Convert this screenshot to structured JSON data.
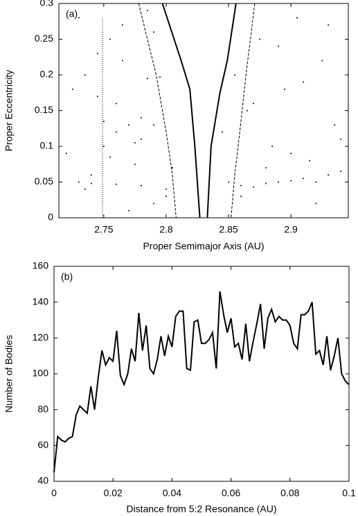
{
  "chart_data": [
    {
      "type": "scatter",
      "annotation": "(a)",
      "x_label": "Proper Semimajor Axis (AU)",
      "y_label": "Proper Eccentricity",
      "xlim": [
        2.714,
        2.946
      ],
      "xticks": [
        2.75,
        2.8,
        2.85,
        2.9
      ],
      "ylim": [
        0,
        0.3
      ],
      "yticks": [
        0,
        0.05,
        0.1,
        0.15,
        0.2,
        0.25,
        0.3
      ],
      "series": [
        {
          "color": "#000000",
          "x": [
            2.73,
            2.74,
            2.76,
            2.78,
            2.8,
            2.77,
            2.75,
            2.79,
            2.72,
            2.735,
            2.755,
            2.765,
            2.785,
            2.795,
            2.745,
            2.775,
            2.805,
            2.76,
            2.78,
            2.79,
            2.73,
            2.75,
            2.77,
            2.79,
            2.74,
            2.76,
            2.78,
            2.8,
            2.85,
            2.86,
            2.87,
            2.88,
            2.89,
            2.9,
            2.91,
            2.92,
            2.93,
            2.94,
            2.845,
            2.855,
            2.865,
            2.875,
            2.885,
            2.895,
            2.905,
            2.915,
            2.925,
            2.935,
            2.86,
            2.88,
            2.9,
            2.92,
            2.94,
            2.87,
            2.89,
            2.91,
            2.93,
            2.725,
            2.745,
            2.765,
            2.785,
            2.735,
            2.755,
            2.775
          ],
          "values": [
            0.05,
            0.048,
            0.047,
            0.045,
            0.04,
            0.13,
            0.135,
            0.13,
            0.09,
            0.2,
            0.25,
            0.22,
            0.195,
            0.197,
            0.17,
            0.075,
            0.07,
            0.16,
            0.11,
            0.02,
            0.28,
            0.1,
            0.01,
            0.26,
            0.06,
            0.12,
            0.14,
            0.03,
            0.05,
            0.045,
            0.043,
            0.048,
            0.05,
            0.052,
            0.055,
            0.05,
            0.06,
            0.065,
            0.12,
            0.2,
            0.15,
            0.25,
            0.1,
            0.18,
            0.28,
            0.08,
            0.22,
            0.13,
            0.03,
            0.07,
            0.09,
            0.02,
            0.11,
            0.16,
            0.24,
            0.19,
            0.27,
            0.18,
            0.23,
            0.27,
            0.29,
            0.04,
            0.085,
            0.105
          ]
        }
      ],
      "curves": [
        {
          "style": "solid",
          "x": [
            2.797,
            2.812,
            2.819,
            2.823,
            2.827
          ],
          "y": [
            0.3,
            0.22,
            0.18,
            0.1,
            0
          ]
        },
        {
          "style": "solid",
          "x": [
            2.856,
            2.849,
            2.843,
            2.836,
            2.833
          ],
          "y": [
            0.3,
            0.22,
            0.174,
            0.1,
            0
          ]
        },
        {
          "style": "dashed",
          "x": [
            2.778,
            2.792,
            2.8,
            2.805,
            2.808
          ],
          "y": [
            0.3,
            0.2,
            0.12,
            0.06,
            0
          ]
        },
        {
          "style": "dashed",
          "x": [
            2.871,
            2.864,
            2.859,
            2.855,
            2.852
          ],
          "y": [
            0.3,
            0.2,
            0.12,
            0.06,
            0
          ]
        },
        {
          "style": "dotted",
          "x": [
            2.749,
            2.749
          ],
          "y": [
            0,
            0.28
          ]
        }
      ]
    },
    {
      "type": "line",
      "annotation": "(b)",
      "x_label": "Distance from 5:2 Resonance (AU)",
      "y_label": "Number of Bodies",
      "xlim": [
        0,
        0.1
      ],
      "xticks": [
        0,
        0.02,
        0.04,
        0.06,
        0.08,
        0.1
      ],
      "ylim": [
        40,
        160
      ],
      "yticks": [
        40,
        60,
        80,
        100,
        120,
        140,
        160
      ],
      "series": [
        {
          "color": "#000000",
          "x": [
            0,
            0.00125,
            0.0025,
            0.00375,
            0.005,
            0.00625,
            0.0075,
            0.00875,
            0.01,
            0.01125,
            0.0125,
            0.01375,
            0.015,
            0.01625,
            0.0175,
            0.01875,
            0.02,
            0.02125,
            0.0225,
            0.02375,
            0.025,
            0.02625,
            0.0275,
            0.02875,
            0.03,
            0.03125,
            0.0325,
            0.03375,
            0.035,
            0.03625,
            0.0375,
            0.03875,
            0.04,
            0.04125,
            0.0425,
            0.04375,
            0.045,
            0.04625,
            0.0475,
            0.04875,
            0.05,
            0.05125,
            0.0525,
            0.05375,
            0.055,
            0.05625,
            0.0575,
            0.05875,
            0.06,
            0.06125,
            0.0625,
            0.06375,
            0.065,
            0.06625,
            0.0675,
            0.06875,
            0.07,
            0.07125,
            0.0725,
            0.07375,
            0.075,
            0.07625,
            0.0775,
            0.07875,
            0.08,
            0.08125,
            0.0825,
            0.08375,
            0.085,
            0.08625,
            0.0875,
            0.08875,
            0.09,
            0.09125,
            0.0925,
            0.09375,
            0.095,
            0.09625,
            0.0975,
            0.09875,
            0.1
          ],
          "values": [
            45,
            65,
            63,
            62,
            64,
            65,
            77,
            82,
            80,
            78,
            93,
            80,
            98,
            113,
            105,
            109,
            107,
            124,
            99,
            94,
            100,
            114,
            107,
            134,
            113,
            127,
            103,
            100,
            108,
            121,
            110,
            121,
            115,
            132,
            135,
            135,
            103,
            102,
            129,
            130,
            117,
            117,
            119,
            123,
            103,
            146,
            133,
            123,
            131,
            115,
            117,
            108,
            128,
            107,
            118,
            128,
            139,
            114,
            131,
            136,
            129,
            132,
            130,
            130,
            127,
            117,
            114,
            133,
            133,
            135,
            140,
            111,
            113,
            105,
            121,
            102,
            110,
            120,
            100,
            96,
            94
          ]
        }
      ]
    }
  ]
}
